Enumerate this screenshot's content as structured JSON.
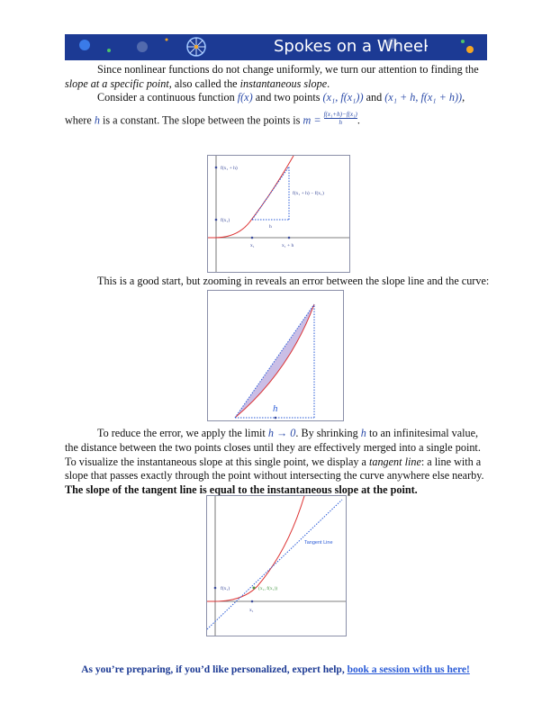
{
  "banner": {
    "title": "Spokes on a Wheel",
    "colors": {
      "background": "#1c3a94",
      "accent": "#f5a623"
    }
  },
  "body": {
    "p1a": "Since nonlinear functions do not change uniformly, we turn our attention to finding the",
    "p1b_em1": "slope at a specific point",
    "p1b_mid": ", also called the ",
    "p1b_em2": "instantaneous slope",
    "p1b_end": ".",
    "p2a_1": "Consider a continuous function ",
    "p2a_fx": "f(x)",
    "p2a_2": " and two points ",
    "p2a_pt1": "(x₁, f(x₁))",
    "p2a_3": " and ",
    "p2a_pt2": "(x₁ + h, f(x₁ + h))",
    "p2a_4": ",",
    "p2b_1": "where ",
    "p2b_h": "h",
    "p2b_2": " is a constant. The slope between the points is ",
    "p2b_m": "m = ",
    "p2b_num": "f(x₁+h)−f(x₁)",
    "p2b_den": "h",
    "p2b_end": ".",
    "p3": "This is a good start, but zooming in reveals an error between the slope line and the curve:",
    "p4a_1": "To reduce the error, we apply the limit ",
    "p4a_lim": "h → 0",
    "p4a_2": ". By shrinking ",
    "p4a_h": "h",
    "p4a_3": " to an infinitesimal value,",
    "p4b": "the distance between the two points closes until they are effectively merged into a single point.",
    "p4c_1": "To visualize the instantaneous slope at this single point, we display a ",
    "p4c_em": "tangent line",
    "p4c_2": ": a line with a",
    "p4d": "slope that passes exactly through the point without intersecting the curve anywhere else nearby.",
    "p4e": "The slope of the tangent line is equal to the instantaneous slope at the point."
  },
  "fig1": {
    "labels": {
      "fx1h": "f(x₁ + h)",
      "fx1": "f(x₁)",
      "diff": "f(x₁ + h) − f(x₁)",
      "h": "h",
      "x1": "x₁",
      "x1h": "x₁ + h"
    }
  },
  "fig2": {
    "labels": {
      "h": "h"
    }
  },
  "fig3": {
    "labels": {
      "tangent": "Tangent Line",
      "fx1": "f(x₁)",
      "point": "(x₁, f(x₁))",
      "x1": "x₁"
    }
  },
  "footer": {
    "text": "As you’re preparing, if you’d like personalized, expert help, ",
    "link": "book a session with us here!"
  }
}
